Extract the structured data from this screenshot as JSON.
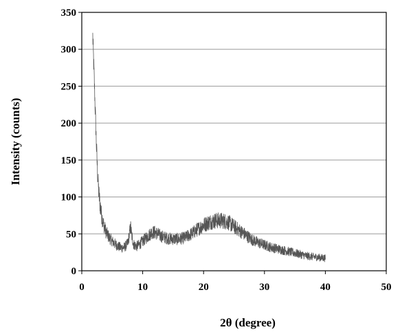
{
  "chart_data": {
    "type": "line",
    "title": "",
    "xlabel": "2θ (degree)",
    "ylabel": "Intensity (counts)",
    "xlim": [
      0,
      50
    ],
    "ylim": [
      0,
      350
    ],
    "xticks": [
      "0",
      "10",
      "20",
      "30",
      "40",
      "50"
    ],
    "yticks": [
      "0",
      "50",
      "100",
      "150",
      "200",
      "250",
      "300",
      "350"
    ],
    "grid": "horizontal",
    "legend": "none",
    "line_color": "#555555",
    "series": [
      {
        "x": [
          1.8,
          2.0,
          2.2,
          2.4,
          2.6,
          2.8,
          3.0,
          3.2,
          3.5,
          4.0,
          4.5,
          5.0,
          5.5,
          6.0,
          6.5,
          7.0,
          7.5,
          7.8,
          8.0,
          8.2,
          8.5,
          9.0,
          9.5,
          10.0,
          10.5,
          11.0,
          11.5,
          12.0,
          12.5,
          13.0,
          14.0,
          15.0,
          16.0,
          17.0,
          18.0,
          19.0,
          20.0,
          21.0,
          22.0,
          23.0,
          24.0,
          25.0,
          26.0,
          27.0,
          28.0,
          29.0,
          30.0,
          31.0,
          32.0,
          33.0,
          34.0,
          35.0,
          36.0,
          37.0,
          38.0,
          39.0,
          40.0
        ],
        "values": [
          318,
          270,
          220,
          170,
          130,
          105,
          90,
          78,
          65,
          52,
          45,
          40,
          36,
          33,
          31,
          32,
          36,
          48,
          60,
          48,
          36,
          33,
          36,
          40,
          44,
          48,
          52,
          52,
          50,
          47,
          44,
          43,
          43,
          45,
          50,
          56,
          62,
          66,
          68,
          68,
          66,
          60,
          54,
          48,
          42,
          38,
          35,
          32,
          30,
          28,
          26,
          24,
          22,
          20,
          19,
          18,
          17
        ]
      }
    ]
  }
}
